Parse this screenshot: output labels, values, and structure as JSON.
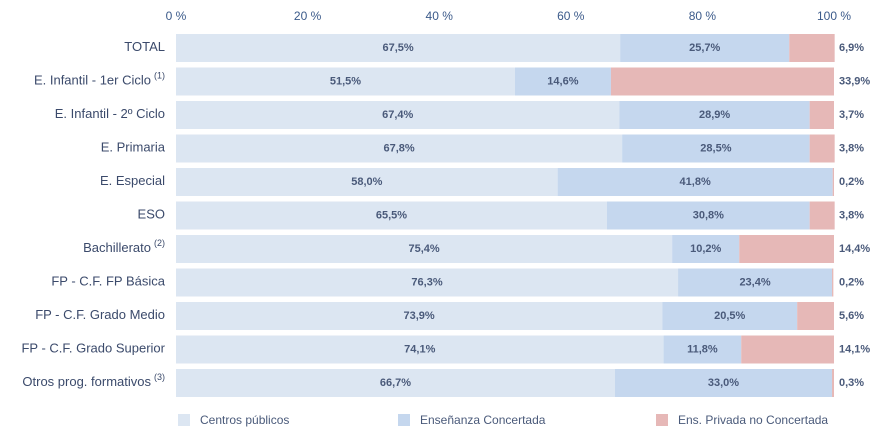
{
  "chart_data": {
    "type": "stacked-bar-horizontal",
    "categories": [
      "TOTAL",
      "E. Infantil - 1er Ciclo",
      "E. Infantil - 2º Ciclo",
      "E. Primaria",
      "E. Especial",
      "ESO",
      "Bachillerato",
      "FP - C.F. FP Básica",
      "FP - C.F. Grado Medio",
      "FP - C.F. Grado Superior",
      "Otros prog. formativos"
    ],
    "category_notes": [
      null,
      "(1)",
      null,
      null,
      null,
      null,
      "(2)",
      null,
      null,
      null,
      "(3)"
    ],
    "series": [
      {
        "name": "Centros públicos",
        "color": "#dce6f2",
        "values": [
          67.5,
          51.5,
          67.4,
          67.8,
          58.0,
          65.5,
          75.4,
          76.3,
          73.9,
          74.1,
          66.7
        ],
        "value_labels": [
          "67,5%",
          "51,5%",
          "67,4%",
          "67,8%",
          "58,0%",
          "65,5%",
          "75,4%",
          "76,3%",
          "73,9%",
          "74,1%",
          "66,7%"
        ]
      },
      {
        "name": "Enseñanza Concertada",
        "color": "#c5d7ee",
        "values": [
          25.7,
          14.6,
          28.9,
          28.5,
          41.8,
          30.8,
          10.2,
          23.4,
          20.5,
          11.8,
          33.0
        ],
        "value_labels": [
          "25,7%",
          "14,6%",
          "28,9%",
          "28,5%",
          "41,8%",
          "30,8%",
          "10,2%",
          "23,4%",
          "20,5%",
          "11,8%",
          "33,0%"
        ]
      },
      {
        "name": "Ens. Privada no Concertada",
        "color": "#e6b8b7",
        "values": [
          6.9,
          33.9,
          3.7,
          3.8,
          0.2,
          3.8,
          14.4,
          0.2,
          5.6,
          14.1,
          0.3
        ],
        "value_labels": [
          "6,9%",
          "33,9%",
          "3,7%",
          "3,8%",
          "0,2%",
          "3,8%",
          "14,4%",
          "0,2%",
          "5,6%",
          "14,1%",
          "0,3%"
        ]
      }
    ],
    "xlim": [
      0,
      100
    ],
    "xticks": [
      {
        "value": 0,
        "label": "0 %"
      },
      {
        "value": 20,
        "label": "20 %"
      },
      {
        "value": 40,
        "label": "40 %"
      },
      {
        "value": 60,
        "label": "60 %"
      },
      {
        "value": 80,
        "label": "80 %"
      },
      {
        "value": 100,
        "label": "100 %"
      }
    ],
    "legend": "bottom"
  }
}
